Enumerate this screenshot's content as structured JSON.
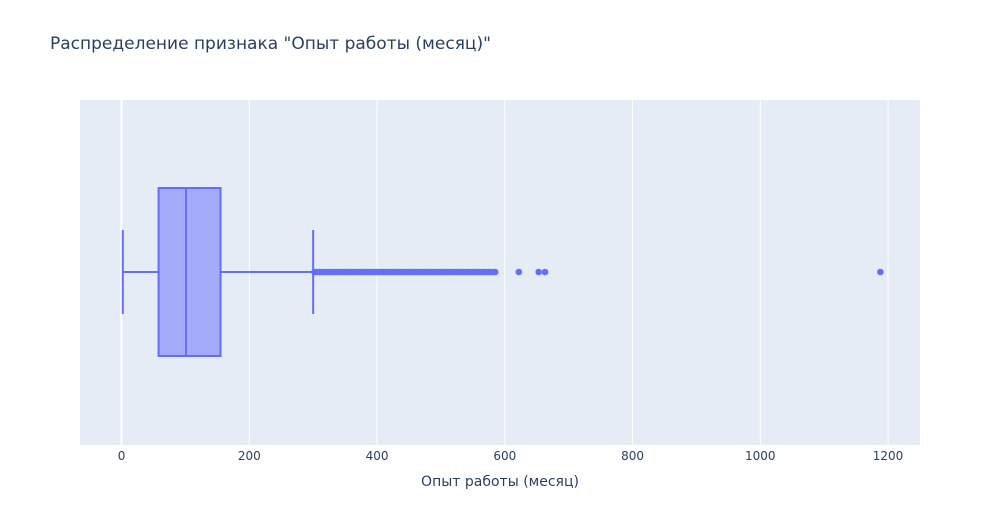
{
  "chart_data": {
    "type": "box",
    "title": "Распределение признака \"Опыт работы (месяц)\"",
    "xlabel": "Опыт работы (месяц)",
    "ylabel": "",
    "orientation": "horizontal",
    "xlim": [
      -65,
      1250
    ],
    "x_ticks": [
      0,
      200,
      400,
      600,
      800,
      1000,
      1200
    ],
    "grid": true,
    "colors": {
      "box_line": "#636efa",
      "box_fill": "#a3aaf7",
      "plot_bg": "#e5ecf6",
      "grid": "#ffffff"
    },
    "box": {
      "min": 2,
      "q1": 58,
      "median": 101,
      "q3": 155,
      "upper_fence": 300,
      "outliers": [
        302,
        305,
        310,
        315,
        320,
        325,
        330,
        335,
        340,
        345,
        350,
        355,
        360,
        365,
        370,
        375,
        380,
        385,
        390,
        395,
        400,
        405,
        410,
        415,
        420,
        425,
        430,
        435,
        440,
        445,
        450,
        455,
        460,
        465,
        470,
        475,
        480,
        485,
        490,
        495,
        500,
        505,
        510,
        515,
        520,
        525,
        530,
        535,
        540,
        545,
        550,
        555,
        560,
        565,
        570,
        575,
        580,
        585,
        622,
        653,
        663,
        1188
      ]
    }
  }
}
